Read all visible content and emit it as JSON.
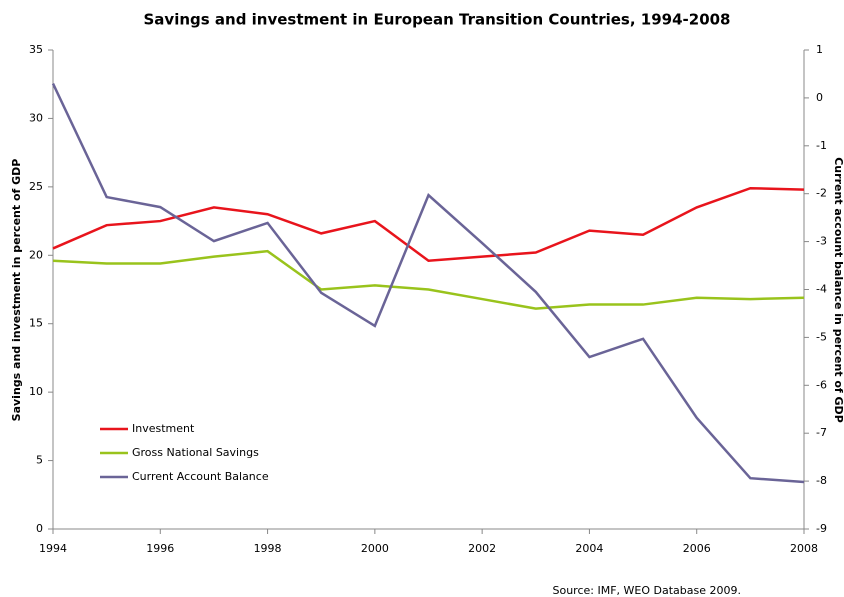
{
  "chart_data": {
    "type": "line",
    "title": "Savings and investment in European Transition Countries, 1994-2008",
    "y_label": "Savings and investment in percent of GDP",
    "y2_label": "Current account balance in percent of GDP",
    "source": "Source: IMF, WEO Database 2009.",
    "x": [
      1994,
      1995,
      1996,
      1997,
      1998,
      1999,
      2000,
      2001,
      2002,
      2003,
      2004,
      2005,
      2006,
      2007,
      2008
    ],
    "xlim": [
      1994,
      2008
    ],
    "xticks": [
      1994,
      1996,
      1998,
      2000,
      2002,
      2004,
      2006,
      2008
    ],
    "ylim": [
      0,
      35
    ],
    "yticks": [
      0,
      5,
      10,
      15,
      20,
      25,
      30,
      35
    ],
    "y2lim": [
      -9,
      1
    ],
    "y2ticks": [
      -9,
      -8,
      -7,
      -6,
      -5,
      -4,
      -3,
      -2,
      -1,
      0,
      1
    ],
    "legend": "lower-left",
    "series": [
      {
        "name": "Investment",
        "color": "#e8141c",
        "values": [
          20.5,
          22.2,
          22.5,
          23.5,
          23.0,
          21.6,
          22.5,
          19.6,
          19.9,
          20.2,
          21.8,
          21.5,
          23.5,
          24.9,
          24.8
        ]
      },
      {
        "name": "Gross National Savings",
        "color": "#99c31c",
        "values": [
          19.6,
          19.4,
          19.4,
          19.9,
          20.3,
          17.5,
          17.8,
          17.5,
          16.8,
          16.1,
          16.4,
          16.4,
          16.9,
          16.8,
          16.9
        ]
      },
      {
        "name": "Current Account Balance",
        "color": "#6a6497",
        "axis": "y2",
        "values": [
          0.3,
          -2.07,
          -2.28,
          -2.99,
          -2.61,
          -4.07,
          -4.76,
          -2.03,
          -3.03,
          -4.05,
          -5.41,
          -5.03,
          -6.68,
          -7.94,
          -8.02
        ]
      }
    ]
  }
}
